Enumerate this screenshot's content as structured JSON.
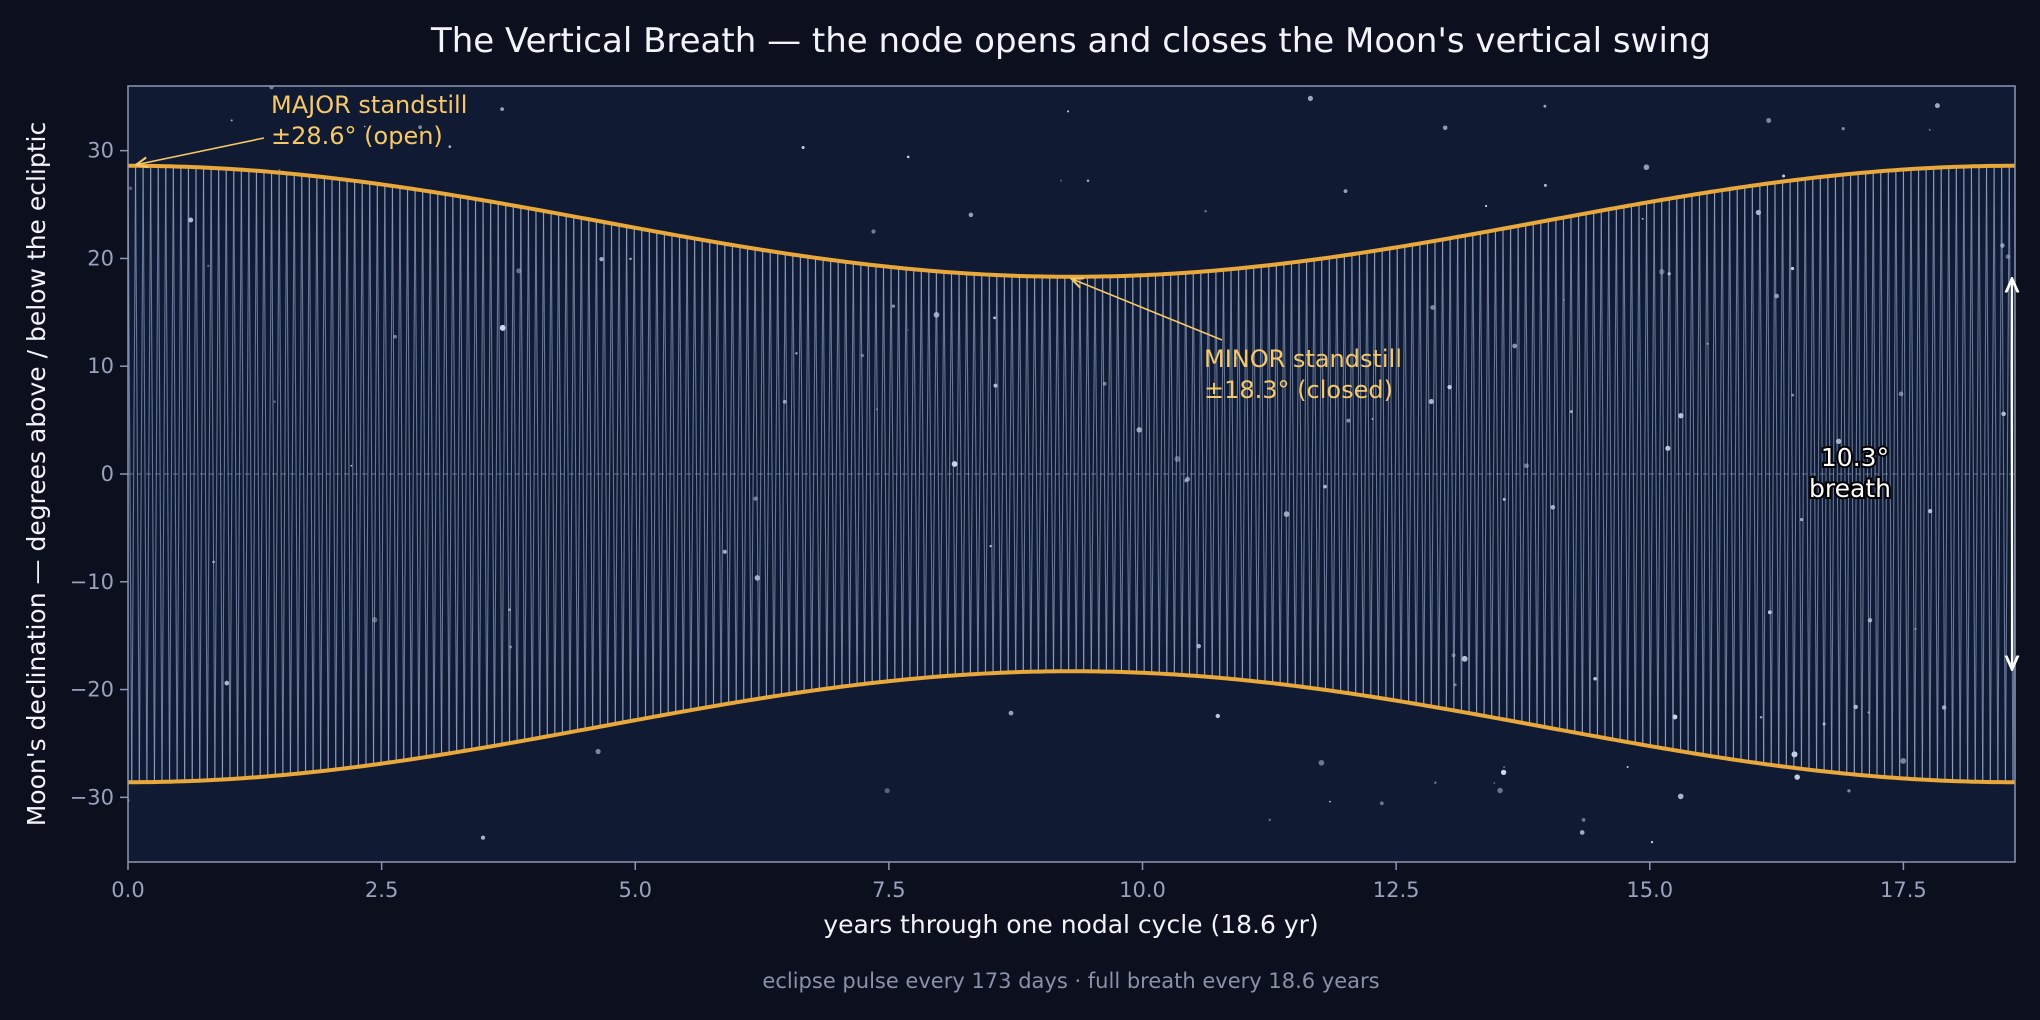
{
  "chart_data": {
    "type": "line",
    "title": "The Vertical Breath — the node opens and closes the Moon's vertical swing",
    "xlabel": "years through one nodal cycle (18.6 yr)",
    "ylabel": "Moon's declination — degrees above / below the ecliptic",
    "xlim": [
      0,
      18.6
    ],
    "ylim": [
      -36,
      36
    ],
    "x_ticks": [
      "0.0",
      "2.5",
      "5.0",
      "7.5",
      "10.0",
      "12.5",
      "15.0",
      "17.5"
    ],
    "x_tick_values": [
      0,
      2.5,
      5,
      7.5,
      10,
      12.5,
      15,
      17.5
    ],
    "y_ticks": [
      "30",
      "20",
      "10",
      "0",
      "−10",
      "−20",
      "−30"
    ],
    "y_tick_values": [
      30,
      20,
      10,
      0,
      -10,
      -20,
      -30
    ],
    "grid": false,
    "envelope": {
      "max_amplitude": 28.6,
      "min_amplitude": 18.3,
      "period_years": 18.6,
      "min_at_year": 9.3
    },
    "oscillation_period_days": 27.2,
    "colors": {
      "background": "#0b0f1e",
      "plot_background": "#111a33",
      "envelope": "#e8a83a",
      "oscillation": "#a8c4ee",
      "annotation_gold": "#f5c86a",
      "frame": "#8e97b3"
    },
    "annotations": {
      "major_line1": "MAJOR standstill",
      "major_line2": "±28.6°  (open)",
      "minor_line1": "MINOR standstill",
      "minor_line2": "±18.3°  (closed)",
      "breath_line1": "10.3°",
      "breath_line2": "breath"
    },
    "footer": "eclipse pulse every 173 days  ·  full breath every 18.6 years"
  }
}
